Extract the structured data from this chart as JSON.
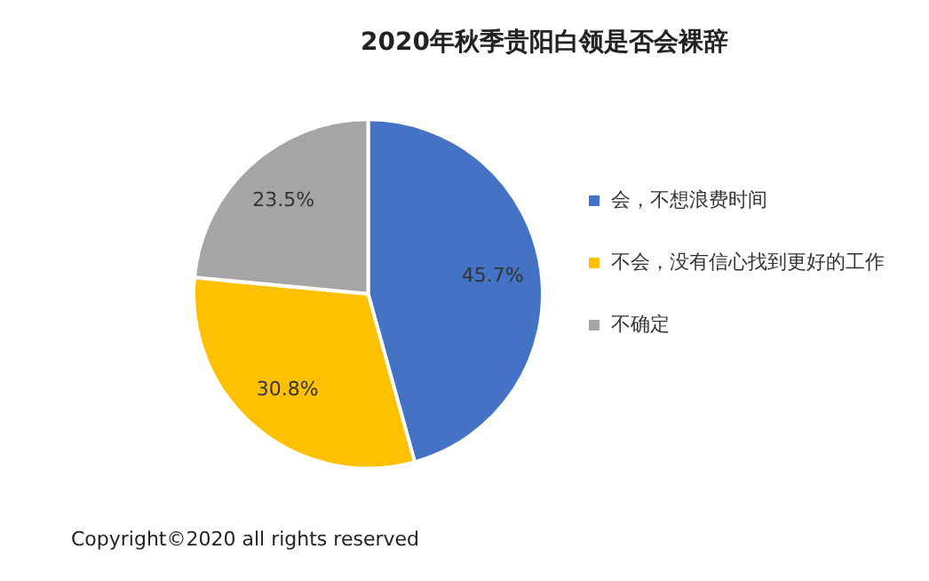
{
  "chart_data": {
    "type": "pie",
    "title": "2020年秋季贵阳白领是否会裸辞",
    "categories": [
      "会，不想浪费时间",
      "不会，没有信心找到更好的工作",
      "不确定"
    ],
    "values": [
      45.7,
      30.8,
      23.5
    ],
    "value_labels": [
      "45.7%",
      "30.8%",
      "23.5%"
    ],
    "colors": [
      "#4472c4",
      "#ffc000",
      "#a5a5a5"
    ],
    "legend": "right",
    "annotations": [
      "Copyright©2020 all rights reserved"
    ]
  }
}
